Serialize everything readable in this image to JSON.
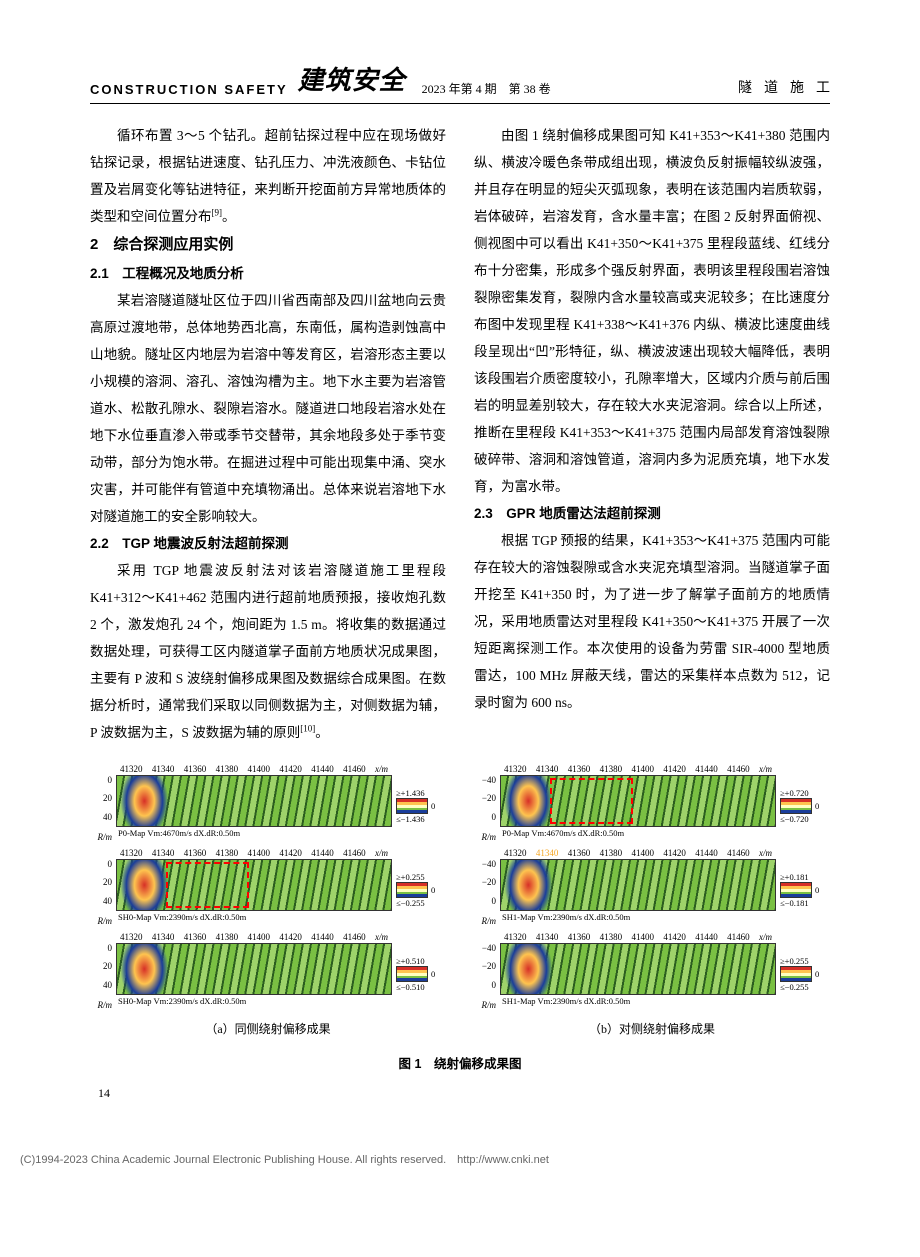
{
  "header": {
    "left": "CONSTRUCTION SAFETY",
    "title_calligraphy": "建筑安全",
    "issue": "2023 年第 4 期　第 38 卷",
    "right": "隧道施工"
  },
  "body": {
    "p1": "循环布置 3～5 个钻孔。超前钻探过程中应在现场做好钻探记录，根据钻进速度、钻孔压力、冲洗液颜色、卡钻位置及岩屑变化等钻进特征，来判断开挖面前方异常地质体的类型和空间位置分布",
    "p1_cite": "[9]",
    "p1_tail": "。",
    "h2": "2　综合探测应用实例",
    "h2_1": "2.1　工程概况及地质分析",
    "p2": "某岩溶隧道隧址区位于四川省西南部及四川盆地向云贵高原过渡地带，总体地势西北高，东南低，属构造剥蚀高中山地貌。隧址区内地层为岩溶中等发育区，岩溶形态主要以小规模的溶洞、溶孔、溶蚀沟槽为主。地下水主要为岩溶管道水、松散孔隙水、裂隙岩溶水。隧道进口地段岩溶水处在地下水位垂直渗入带或季节交替带，其余地段多处于季节变动带，部分为饱水带。在掘进过程中可能出现集中涌、突水灾害，并可能伴有管道中充填物涌出。总体来说岩溶地下水对隧道施工的安全影响较大。",
    "h2_2": "2.2　TGP 地震波反射法超前探测",
    "p3a": "采用 TGP 地震波反射法对该岩溶隧道施工里程段 K41+312～K41+462 范围内进行超前地质预报，接收炮孔数 2 个，激发炮孔 24 个，炮间距为 1.5 m。将收集的数据通过数据处理，可获得工区内隧道掌子面前方地质状况成果图，主要有 P 波和 S 波绕射偏移成果图及数据综合成果图。在数据分析时，通常我们采取以同侧数据为主，对侧数据为辅，P 波数据为主，S 波数据为辅的原则",
    "p3_cite": "[10]",
    "p3_tail": "。",
    "p4": "由图 1 绕射偏移成果图可知 K41+353～K41+380 范围内纵、横波冷暖色条带成组出现，横波负反射振幅较纵波强，并且存在明显的短尖灭弧现象，表明在该范围内岩质软弱，岩体破碎，岩溶发育，含水量丰富；在图 2 反射界面俯视、侧视图中可以看出 K41+350～K41+375 里程段蓝线、红线分布十分密集，形成多个强反射界面，表明该里程段围岩溶蚀裂隙密集发育，裂隙内含水量较高或夹泥较多；在比速度分布图中发现里程 K41+338～K41+376 内纵、横波比速度曲线段呈现出“凹”形特征，纵、横波波速出现较大幅降低，表明该段围岩介质密度较小，孔隙率增大，区域内介质与前后围岩的明显差别较大，存在较大水夹泥溶洞。综合以上所述，推断在里程段 K41+353～K41+375 范围内局部发育溶蚀裂隙破碎带、溶洞和溶蚀管道，溶洞内多为泥质充填，地下水发育，为富水带。",
    "h2_3": "2.3　GPR 地质雷达法超前探测",
    "p5": "根据 TGP 预报的结果，K41+353～K41+375 范围内可能存在较大的溶蚀裂隙或含水夹泥充填型溶洞。当隧道掌子面开挖至 K41+350 时，为了进一步了解掌子面前方的地质情况，采用地质雷达对里程段 K41+350～K41+375 开展了一次短距离探测工作。本次使用的设备为劳雷 SIR-4000 型地质雷达，100 MHz 屏蔽天线，雷达的采集样本点数为 512，记录时窗为 600 ns。"
  },
  "figures": {
    "xticks": [
      "41320",
      "41340",
      "41360",
      "41380",
      "41400",
      "41420",
      "41440",
      "41460",
      "x/m"
    ],
    "left": {
      "panels": [
        {
          "yticks": [
            "0",
            "20",
            "40"
          ],
          "unit": "R/m",
          "caption": "P0-Map Vm:4670m/s dX.dR:0.50m",
          "cmax": "≥+1.436",
          "cmid": "0",
          "cmin": "≤−1.436",
          "redbox": false
        },
        {
          "yticks": [
            "0",
            "20",
            "40"
          ],
          "unit": "R/m",
          "caption": "SH0-Map Vm:2390m/s dX.dR:0.50m",
          "cmax": "≥+0.255",
          "cmid": "0",
          "cmin": "≤−0.255",
          "redbox": true
        },
        {
          "yticks": [
            "0",
            "20",
            "40"
          ],
          "unit": "R/m",
          "caption": "SH0-Map Vm:2390m/s dX.dR:0.50m",
          "cmax": "≥+0.510",
          "cmid": "0",
          "cmin": "≤−0.510",
          "redbox": false
        }
      ],
      "subcaption": "（a）同侧绕射偏移成果"
    },
    "right": {
      "panels": [
        {
          "yticks": [
            "−40",
            "−20",
            "0"
          ],
          "unit": "R/m",
          "caption": "P0-Map Vm:4670m/s dX.dR:0.50m",
          "cmax": "≥+0.720",
          "cmid": "0",
          "cmin": "≤−0.720",
          "redbox": true
        },
        {
          "yticks": [
            "−40",
            "−20",
            "0"
          ],
          "unit": "R/m",
          "caption": "SH1-Map Vm:2390m/s dX.dR:0.50m",
          "cmax": "≥+0.181",
          "cmid": "0",
          "cmin": "≤−0.181",
          "redbox": false
        },
        {
          "yticks": [
            "−40",
            "−20",
            "0"
          ],
          "unit": "R/m",
          "caption": "SH1-Map Vm:2390m/s dX.dR:0.50m",
          "cmax": "≥+0.255",
          "cmid": "0",
          "cmin": "≤−0.255",
          "redbox": false
        }
      ],
      "subcaption": "（b）对侧绕射偏移成果"
    },
    "title": "图 1　绕射偏移成果图",
    "colorbar_colors": [
      "#d73027",
      "#fec44f",
      "#ffffc0",
      "#7ac043",
      "#1a3d9a"
    ],
    "seismic_bg": "repeating-linear-gradient(100deg,#7ac043 0 6px,#2b5e1f 6px 8px,#9ed36a 8px 14px,#2b5e1f 14px 16px)",
    "seismic_hot": "radial-gradient(ellipse 40px 60px at 10% 50%,#d73027 0%,#fec44f 25%,#1a3d9a 45%,transparent 60%)"
  },
  "page_num": "14",
  "footer": "(C)1994-2023 China Academic Journal Electronic Publishing House. All rights reserved.　http://www.cnki.net"
}
